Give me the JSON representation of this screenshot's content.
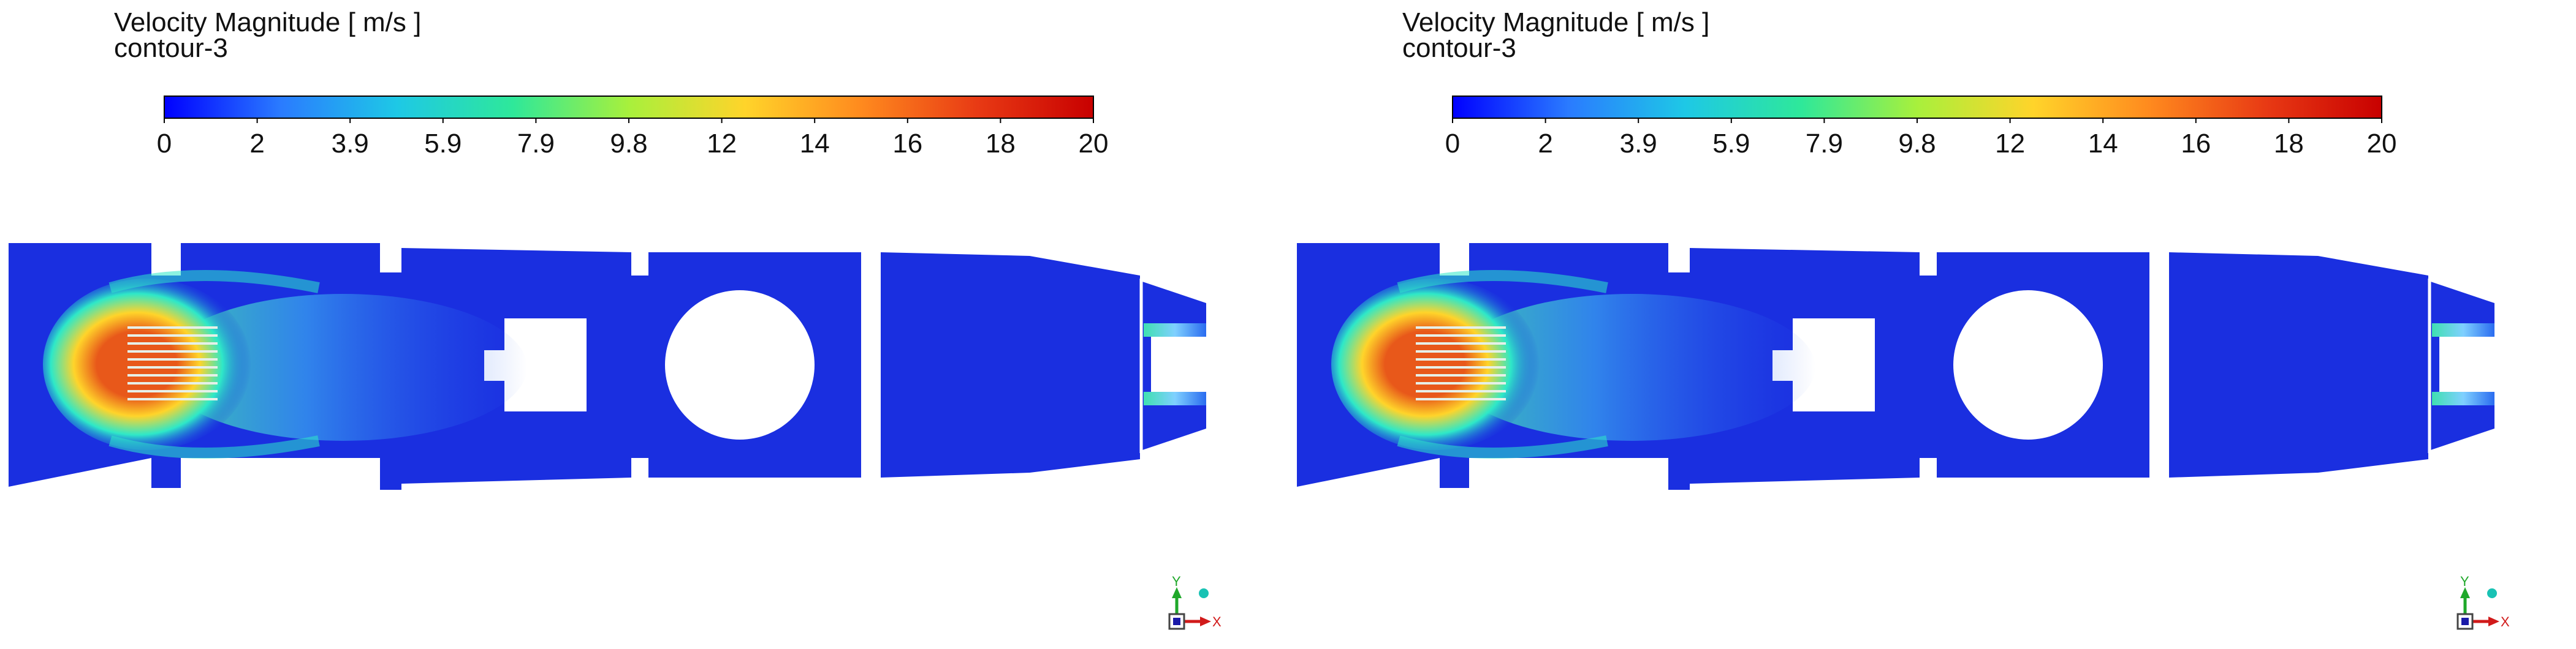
{
  "panels": [
    {
      "title": "Velocity Magnitude [ m/s ]",
      "subtitle": "contour-3",
      "colorbar": {
        "min": 0,
        "max": 20,
        "tick_labels": [
          "0",
          "2",
          "3.9",
          "5.9",
          "7.9",
          "9.8",
          "12",
          "14",
          "16",
          "18",
          "20"
        ],
        "colors": [
          "#0000ff",
          "#2a7bff",
          "#1ec8e6",
          "#2ee89a",
          "#a8f03c",
          "#ffd42a",
          "#ff8a1e",
          "#e83a14",
          "#c80000"
        ]
      },
      "triad": {
        "y_label": "Y",
        "x_label": "X"
      }
    },
    {
      "title": "Velocity Magnitude [ m/s ]",
      "subtitle": "contour-3",
      "colorbar": {
        "min": 0,
        "max": 20,
        "tick_labels": [
          "0",
          "2",
          "3.9",
          "5.9",
          "7.9",
          "9.8",
          "12",
          "14",
          "16",
          "18",
          "20"
        ],
        "colors": [
          "#0000ff",
          "#2a7bff",
          "#1ec8e6",
          "#2ee89a",
          "#a8f03c",
          "#ffd42a",
          "#ff8a1e",
          "#e83a14",
          "#c80000"
        ]
      },
      "triad": {
        "y_label": "Y",
        "x_label": "X"
      }
    }
  ],
  "palette": {
    "background": "#ffffff",
    "low_velocity": "#1a2fe0",
    "jet_core": "#e8581a",
    "jet_mid": "#ffd42a",
    "jet_edge": "#2ee8c8",
    "triad_y": "#1fa82a",
    "triad_x": "#d11a1a",
    "triad_z": "#1a1aa8",
    "triad_ball": "#19c2b4"
  }
}
